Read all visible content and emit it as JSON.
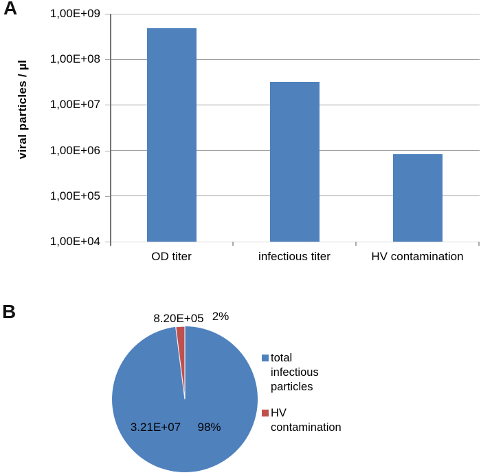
{
  "panels": {
    "a": "A",
    "b": "B"
  },
  "colors": {
    "series_blue": "#4f81bd",
    "series_red": "#c0504d",
    "gridline": "#a6a6a6",
    "axis": "#737373"
  },
  "chart_data": [
    {
      "type": "bar",
      "title": "",
      "xlabel": "",
      "ylabel": "viral particles / µl",
      "y_scale": "log10",
      "ylim_log": [
        4,
        9
      ],
      "grid": true,
      "bar_color": "#4f81bd",
      "y_ticks": [
        "1,00E+09",
        "1,00E+08",
        "1,00E+07",
        "1,00E+06",
        "1,00E+05",
        "1,00E+04"
      ],
      "categories": [
        "OD titer",
        "infectious titer",
        "HV contamination"
      ],
      "values": [
        480000000,
        32100000,
        820000
      ]
    },
    {
      "type": "pie",
      "title": "",
      "legend_position": "right",
      "slices": [
        {
          "label": "total infectious particles",
          "value": 32100000,
          "value_label": "3.21E+07",
          "pct_label": "98%",
          "percent": 98,
          "color": "#4f81bd"
        },
        {
          "label": "HV contamination",
          "value": 820000,
          "value_label": "8.20E+05",
          "pct_label": "2%",
          "percent": 2,
          "color": "#c0504d"
        }
      ],
      "legend": [
        {
          "label": "total\ninfectious\nparticles",
          "color": "#4f81bd"
        },
        {
          "label": "HV\ncontamination",
          "color": "#c0504d"
        }
      ]
    }
  ]
}
